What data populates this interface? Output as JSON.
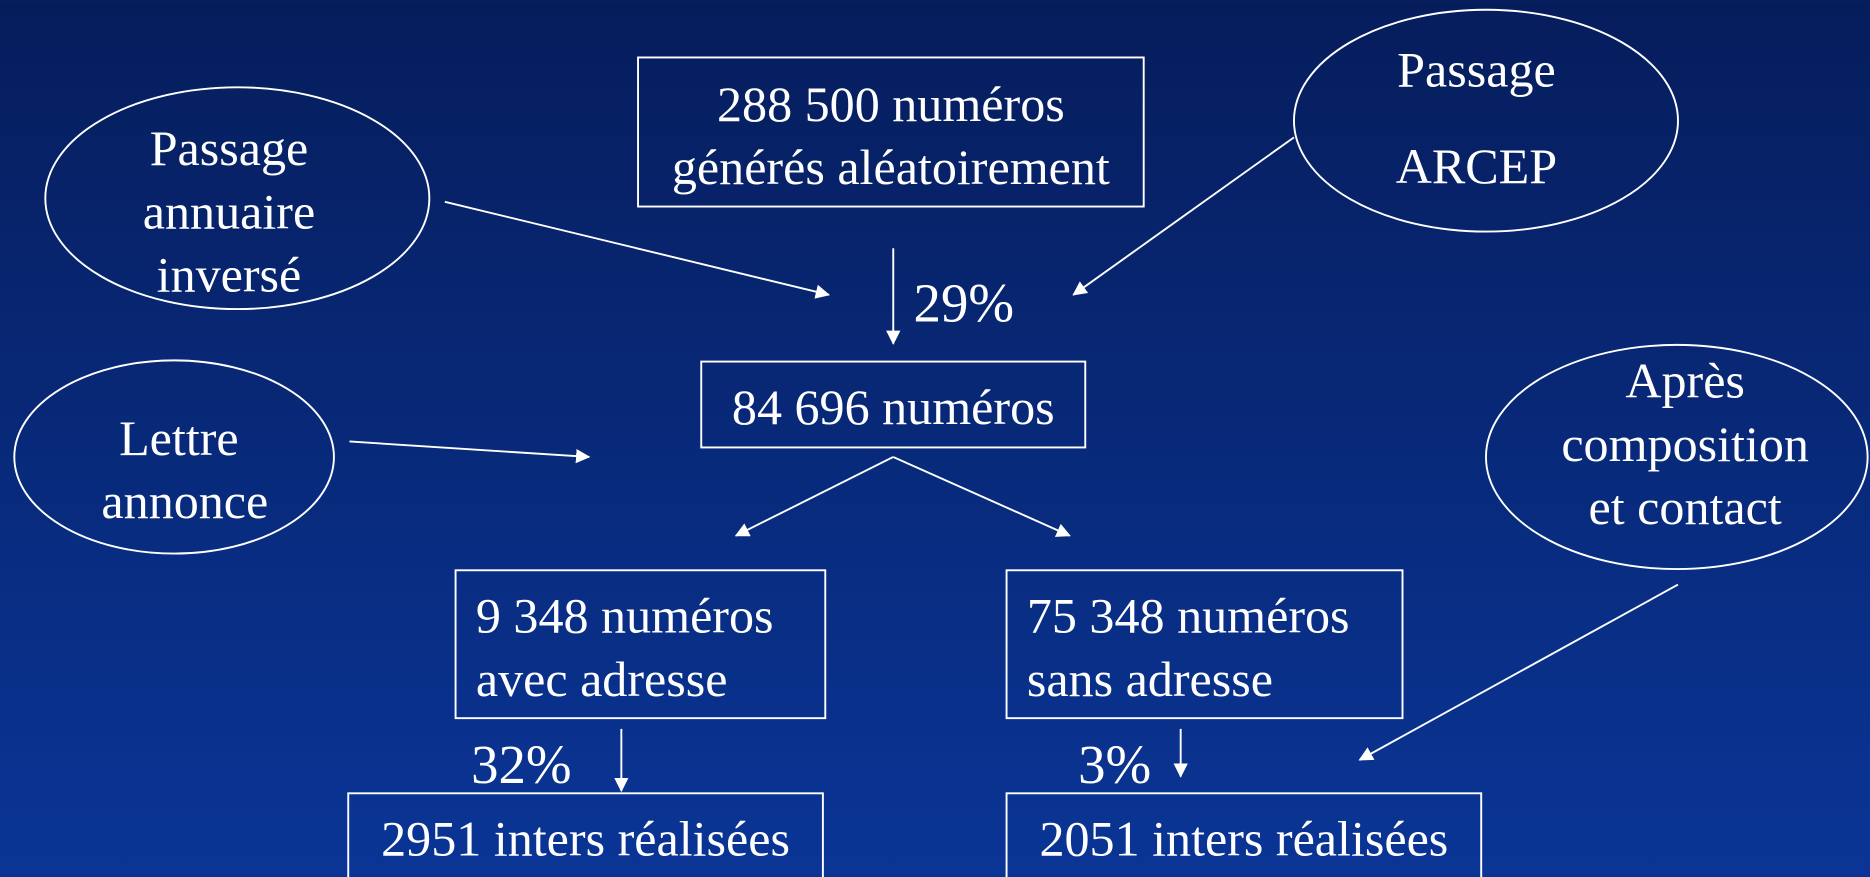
{
  "boxes": [
    {
      "lines": [
        "288 500 numéros",
        "générés aléatoirement"
      ]
    },
    {
      "lines": [
        "84 696 numéros"
      ]
    },
    {
      "lines": [
        "9 348 numéros",
        "avec adresse"
      ]
    },
    {
      "lines": [
        "75 348 numéros",
        "sans adresse"
      ]
    },
    {
      "lines": [
        "2951 inters réalisées"
      ]
    },
    {
      "lines": [
        "2051 inters réalisées"
      ]
    }
  ],
  "ellipses": [
    {
      "lines": [
        "Passage",
        "annuaire",
        "inversé"
      ]
    },
    {
      "lines": [
        "Passage",
        "ARCEP"
      ]
    },
    {
      "lines": [
        "Lettre",
        "annonce"
      ]
    },
    {
      "lines": [
        "Après",
        "composition",
        "et contact"
      ]
    }
  ],
  "rates": [
    "29%",
    "32%",
    "3%"
  ]
}
